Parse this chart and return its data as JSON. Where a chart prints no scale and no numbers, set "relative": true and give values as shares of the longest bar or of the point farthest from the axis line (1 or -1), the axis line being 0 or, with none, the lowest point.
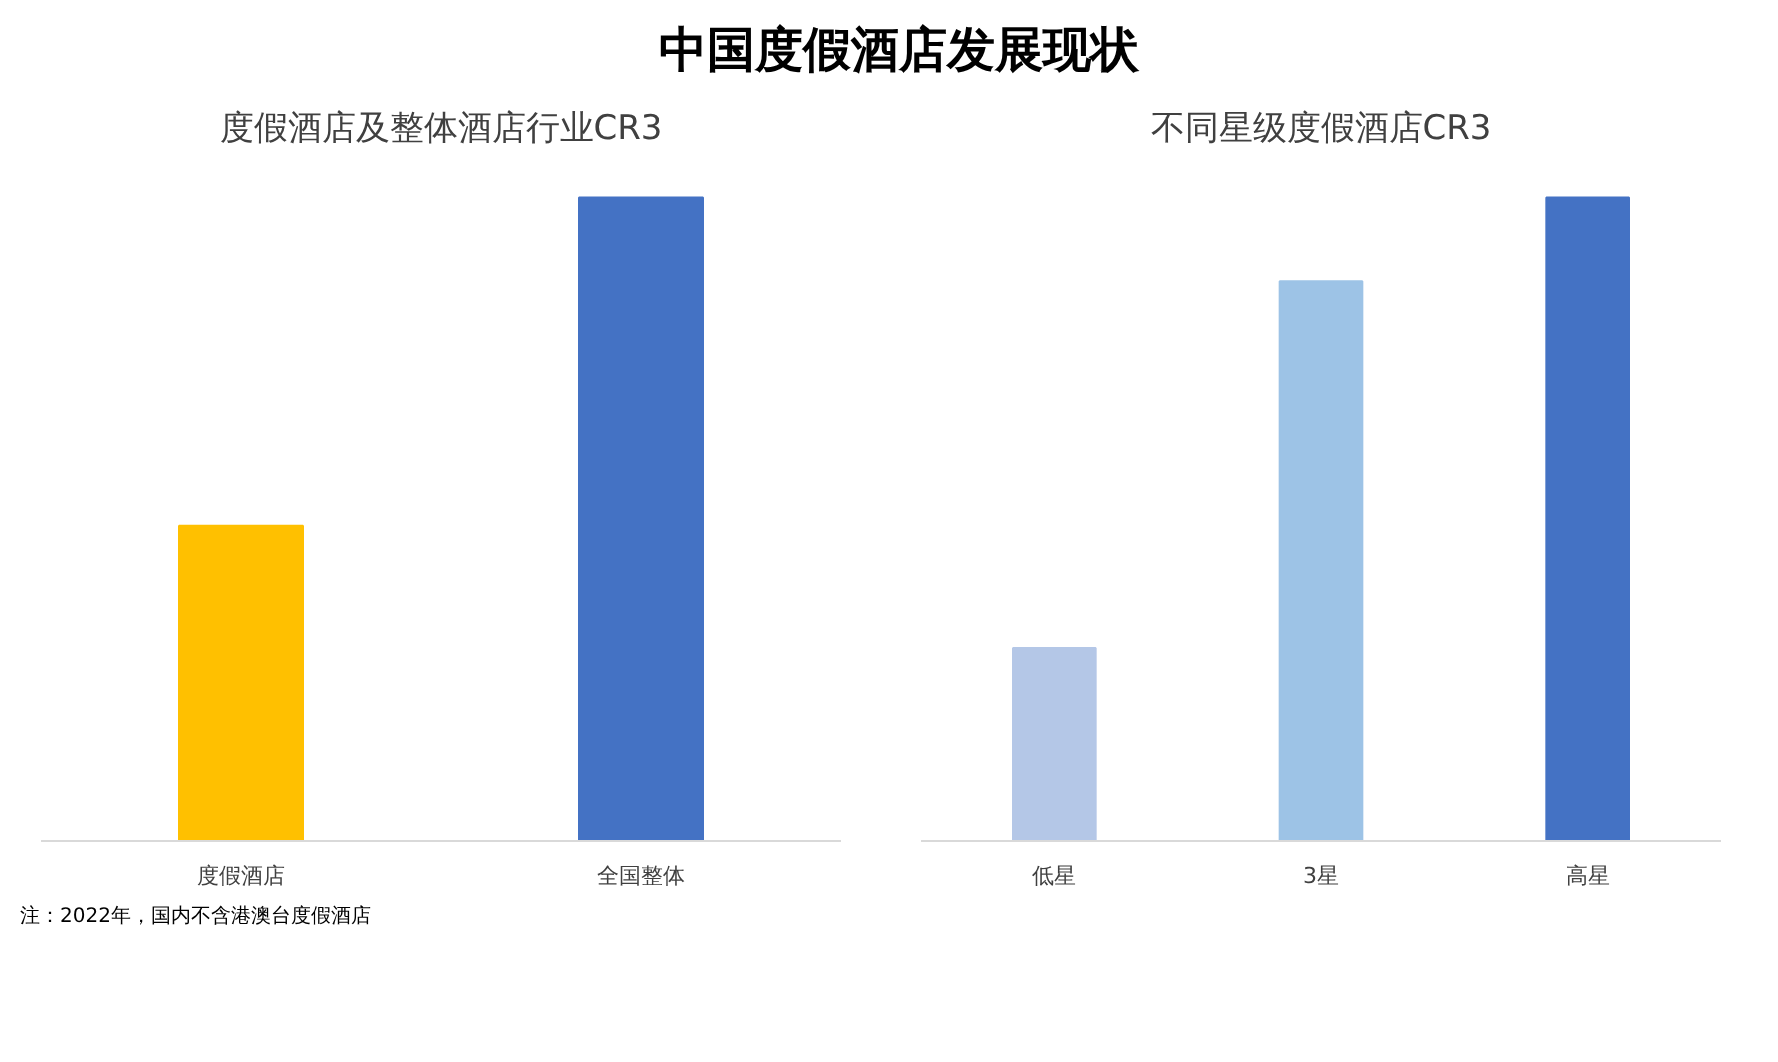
{
  "chart_data": [
    {
      "type": "bar",
      "title": "中国度假酒店发展现状",
      "subtitle": "度假酒店及整体酒店行业CR3",
      "categories": [
        "度假酒店",
        "全国整体"
      ],
      "values": [
        0.49,
        1
      ],
      "colors": [
        "#ffc000",
        "#4472c4"
      ],
      "relative": true,
      "annotations": [
        "注：2022年，国内不含港澳台度假酒店"
      ]
    },
    {
      "type": "bar",
      "title": "不同星级度假酒店CR3",
      "categories": [
        "低星",
        "3星",
        "高星"
      ],
      "values": [
        0.3,
        0.87,
        1
      ],
      "colors": [
        "#b4c7e7",
        "#9dc3e6",
        "#4472c4"
      ],
      "relative": true
    }
  ]
}
